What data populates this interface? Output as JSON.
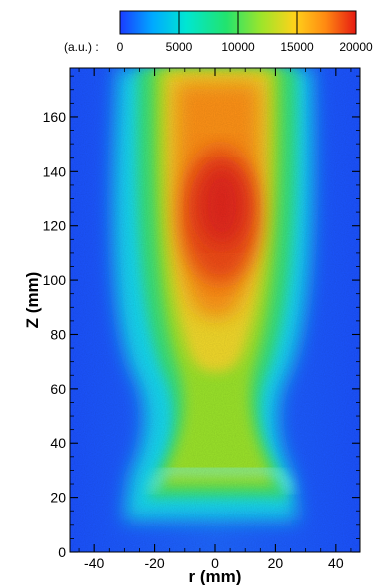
{
  "chart_data": {
    "type": "heatmap",
    "title": "",
    "xlabel": "r (mm)",
    "ylabel": "Z (mm)",
    "xlim": [
      -48,
      48
    ],
    "ylim": [
      0,
      178
    ],
    "xticks": [
      -40,
      -20,
      0,
      20,
      40
    ],
    "yticks": [
      0,
      20,
      40,
      60,
      80,
      100,
      120,
      140,
      160
    ],
    "colorbar": {
      "unit_label": "(a.u.) :",
      "range": [
        0,
        20000
      ],
      "ticks": [
        0,
        5000,
        10000,
        15000,
        20000
      ],
      "colors": [
        "#1a3cff",
        "#00aaff",
        "#00e6d2",
        "#22e36e",
        "#9ee52a",
        "#ffd21a",
        "#ff8a12",
        "#e61a12"
      ]
    },
    "field_description": {
      "colormap_stops": [
        0,
        5000,
        10000,
        15000,
        20000
      ],
      "nozzle_exit_z": 20,
      "peak_intensity": 18000,
      "peak_location": {
        "r": 0,
        "z": 130
      },
      "background_intensity": 1200
    }
  }
}
